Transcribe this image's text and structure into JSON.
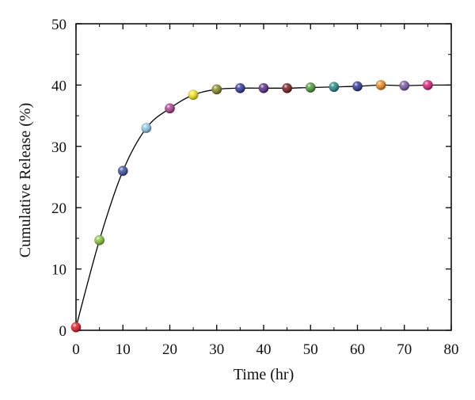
{
  "chart_data": {
    "type": "scatter",
    "xlabel": "Time (hr)",
    "ylabel": "Cumulative Release (%)",
    "xlim": [
      0,
      80
    ],
    "ylim": [
      0,
      50
    ],
    "xticks": [
      0,
      10,
      20,
      30,
      40,
      50,
      60,
      70,
      80
    ],
    "yticks": [
      0,
      10,
      20,
      30,
      40,
      50
    ],
    "x_tick_labels": [
      "0",
      "10",
      "20",
      "30",
      "40",
      "50",
      "60",
      "70",
      "80"
    ],
    "y_tick_labels": [
      "0",
      "10",
      "20",
      "30",
      "40",
      "50"
    ],
    "grid": false,
    "legend": "none",
    "series": [
      {
        "x": [
          0,
          5,
          10,
          15,
          20,
          25,
          30,
          35,
          40,
          45,
          50,
          55,
          60,
          65,
          70,
          75
        ],
        "y": [
          0.5,
          14.7,
          26.0,
          33.0,
          36.2,
          38.4,
          39.3,
          39.5,
          39.5,
          39.5,
          39.6,
          39.7,
          39.8,
          40.0,
          39.9,
          40.0
        ],
        "marker_colors": [
          "#e01e2d",
          "#8cc63f",
          "#3d4fa3",
          "#8fc8e8",
          "#b0418f",
          "#f5e61a",
          "#8a8a2a",
          "#343a9a",
          "#5a2d8a",
          "#7b1d1d",
          "#4f9a3c",
          "#2a8a8a",
          "#2f3a96",
          "#f08a24",
          "#7a5aa8",
          "#e0207a"
        ]
      }
    ],
    "curve": {
      "x": [
        0,
        5,
        10,
        15,
        20,
        25,
        30,
        35,
        40,
        45,
        50,
        55,
        60,
        65,
        70,
        75,
        80
      ],
      "y": [
        0.5,
        14.7,
        26.0,
        33.0,
        36.2,
        38.4,
        39.3,
        39.5,
        39.5,
        39.5,
        39.6,
        39.7,
        39.8,
        40.0,
        39.9,
        40.0,
        40.0
      ],
      "color": "#000000"
    }
  }
}
